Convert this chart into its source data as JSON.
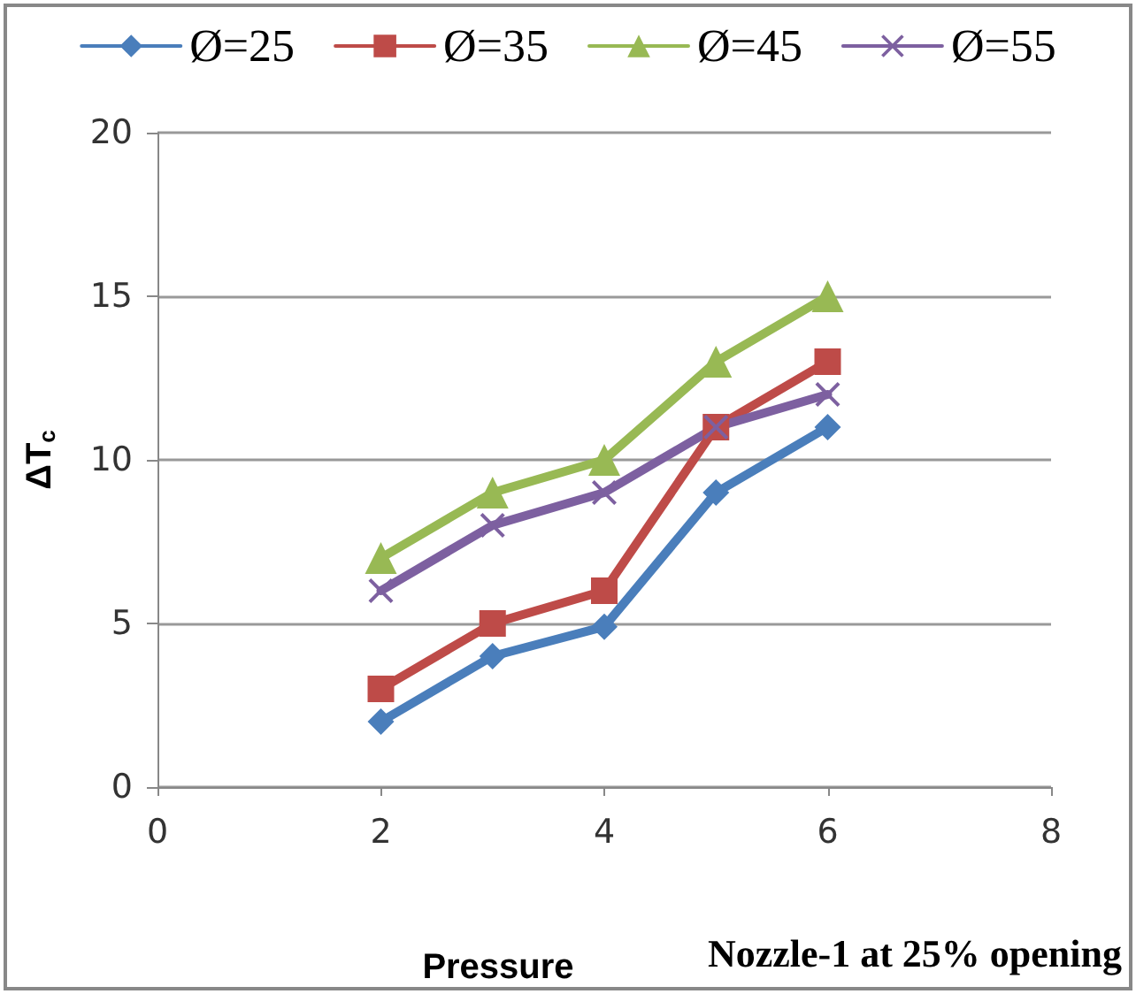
{
  "chart_data": {
    "type": "line",
    "xlabel": "Pressure",
    "ylabel": "ΔT$_{c}$",
    "annotations": [
      "Nozzle-1 at 25% opening"
    ],
    "x": [
      2,
      3,
      4,
      5,
      6
    ],
    "xlim": [
      0,
      8
    ],
    "xticks": [
      0,
      2,
      4,
      6,
      8
    ],
    "ylim": [
      0,
      20
    ],
    "yticks": [
      0,
      5,
      10,
      15,
      20
    ],
    "grid": "y",
    "legend": "top",
    "series": [
      {
        "name": "Ø=25",
        "color": "#4a7ebb",
        "marker": "diamond",
        "values": [
          2,
          4,
          4.9,
          9,
          11
        ]
      },
      {
        "name": "Ø=35",
        "color": "#be4b48",
        "marker": "square",
        "values": [
          3,
          5,
          6,
          11,
          13
        ]
      },
      {
        "name": "Ø=45",
        "color": "#98b954",
        "marker": "triangle",
        "values": [
          7,
          9,
          10,
          13,
          15
        ]
      },
      {
        "name": "Ø=55",
        "color": "#7d60a0",
        "marker": "cross",
        "values": [
          6,
          8,
          9,
          11,
          12
        ]
      }
    ]
  }
}
